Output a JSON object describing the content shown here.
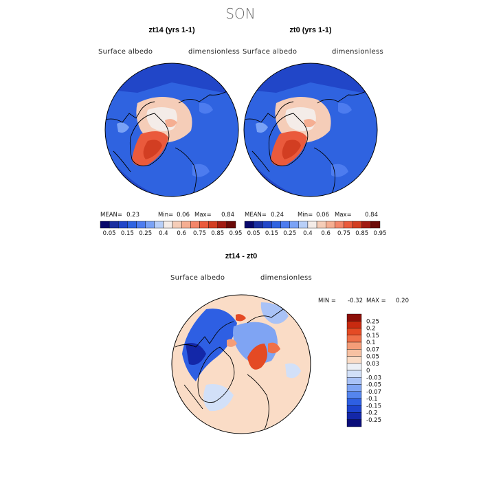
{
  "colors": {
    "abs_scale": [
      "#08086b",
      "#1a2fa0",
      "#2146c8",
      "#2f63e0",
      "#4d7cef",
      "#7aa2f5",
      "#b8cff8",
      "#f4ece8",
      "#f5cdb8",
      "#f5ae92",
      "#f3866a",
      "#ea5a3c",
      "#d23e22",
      "#a11b12",
      "#6b0a08"
    ],
    "diff_scale": [
      "#0a0d7a",
      "#1327a8",
      "#1d43cd",
      "#2e5fe3",
      "#5585ee",
      "#7fa4f3",
      "#a9c2f6",
      "#d2e0f8",
      "#ecf0f6",
      "#fadcc6",
      "#f7c1a2",
      "#f49d78",
      "#ef7049",
      "#e44a24",
      "#c82a10",
      "#8c0f08"
    ],
    "land_outline": "#000000"
  },
  "chart_data": [
    {
      "type": "heatmap",
      "panel_id": "zt14",
      "season": "SON",
      "title": "zt14 (yrs 1-1)",
      "variable": "Surface albedo",
      "units": "dimensionless",
      "stats": {
        "mean_label": "MEAN=",
        "mean": "0.23",
        "min_label": "Min=",
        "min": "0.06",
        "max_label": "Max=",
        "max": "0.84"
      },
      "contour_levels": [
        "0.05",
        "0.15",
        "0.25",
        "0.4",
        "0.6",
        "0.75",
        "0.85",
        "0.95"
      ],
      "projection": "north polar stereographic"
    },
    {
      "type": "heatmap",
      "panel_id": "zt0",
      "season": "SON",
      "title": "zt0 (yrs 1-1)",
      "variable": "Surface albedo",
      "units": "dimensionless",
      "stats": {
        "mean_label": "MEAN=",
        "mean": "0.24",
        "min_label": "Min=",
        "min": "0.06",
        "max_label": "Max=",
        "max": "0.84"
      },
      "contour_levels": [
        "0.05",
        "0.15",
        "0.25",
        "0.4",
        "0.6",
        "0.75",
        "0.85",
        "0.95"
      ],
      "projection": "north polar stereographic"
    },
    {
      "type": "heatmap",
      "panel_id": "diff",
      "season": "SON",
      "title": "zt14 - zt0",
      "variable": "Surface albedo",
      "units": "dimensionless",
      "stats": {
        "min_label": "MIN =",
        "min": "-0.32",
        "max_label": "MAX =",
        "max": "0.20"
      },
      "contour_levels": [
        "0.25",
        "0.2",
        "0.15",
        "0.1",
        "0.07",
        "0.05",
        "0.03",
        "0",
        "-0.03",
        "-0.05",
        "-0.07",
        "-0.1",
        "-0.15",
        "-0.2",
        "-0.25"
      ],
      "projection": "north polar stereographic"
    }
  ],
  "page": {
    "super_title": "SON"
  }
}
